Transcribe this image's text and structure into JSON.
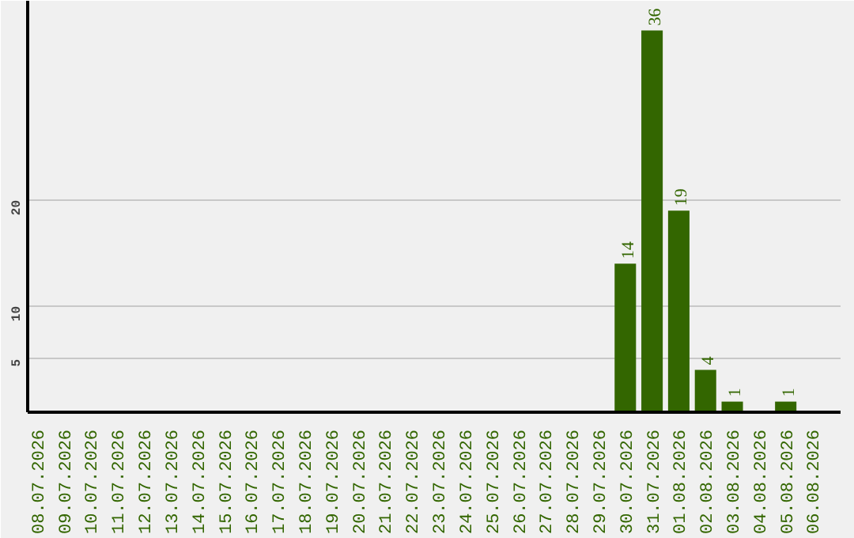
{
  "chart_data": {
    "type": "bar",
    "categories": [
      "08.07.2026",
      "09.07.2026",
      "10.07.2026",
      "11.07.2026",
      "12.07.2026",
      "13.07.2026",
      "14.07.2026",
      "15.07.2026",
      "16.07.2026",
      "17.07.2026",
      "18.07.2026",
      "19.07.2026",
      "20.07.2026",
      "21.07.2026",
      "22.07.2026",
      "23.07.2026",
      "24.07.2026",
      "25.07.2026",
      "26.07.2026",
      "27.07.2026",
      "28.07.2026",
      "29.07.2026",
      "30.07.2026",
      "31.07.2026",
      "01.08.2026",
      "02.08.2026",
      "03.08.2026",
      "04.08.2026",
      "05.08.2026",
      "06.08.2026"
    ],
    "values": [
      0,
      0,
      0,
      0,
      0,
      0,
      0,
      0,
      0,
      0,
      0,
      0,
      0,
      0,
      0,
      0,
      0,
      0,
      0,
      0,
      0,
      0,
      14,
      36,
      19,
      4,
      1,
      0,
      1,
      0
    ],
    "value_labels": [
      null,
      null,
      null,
      null,
      null,
      null,
      null,
      null,
      null,
      null,
      null,
      null,
      null,
      null,
      null,
      null,
      null,
      null,
      null,
      null,
      null,
      null,
      "14",
      "36",
      "19",
      "4",
      "1",
      null,
      "1",
      null
    ],
    "color": "#336600",
    "ylim": [
      0,
      38.8
    ],
    "yticks": [
      5,
      10,
      20
    ],
    "grid": "y"
  }
}
